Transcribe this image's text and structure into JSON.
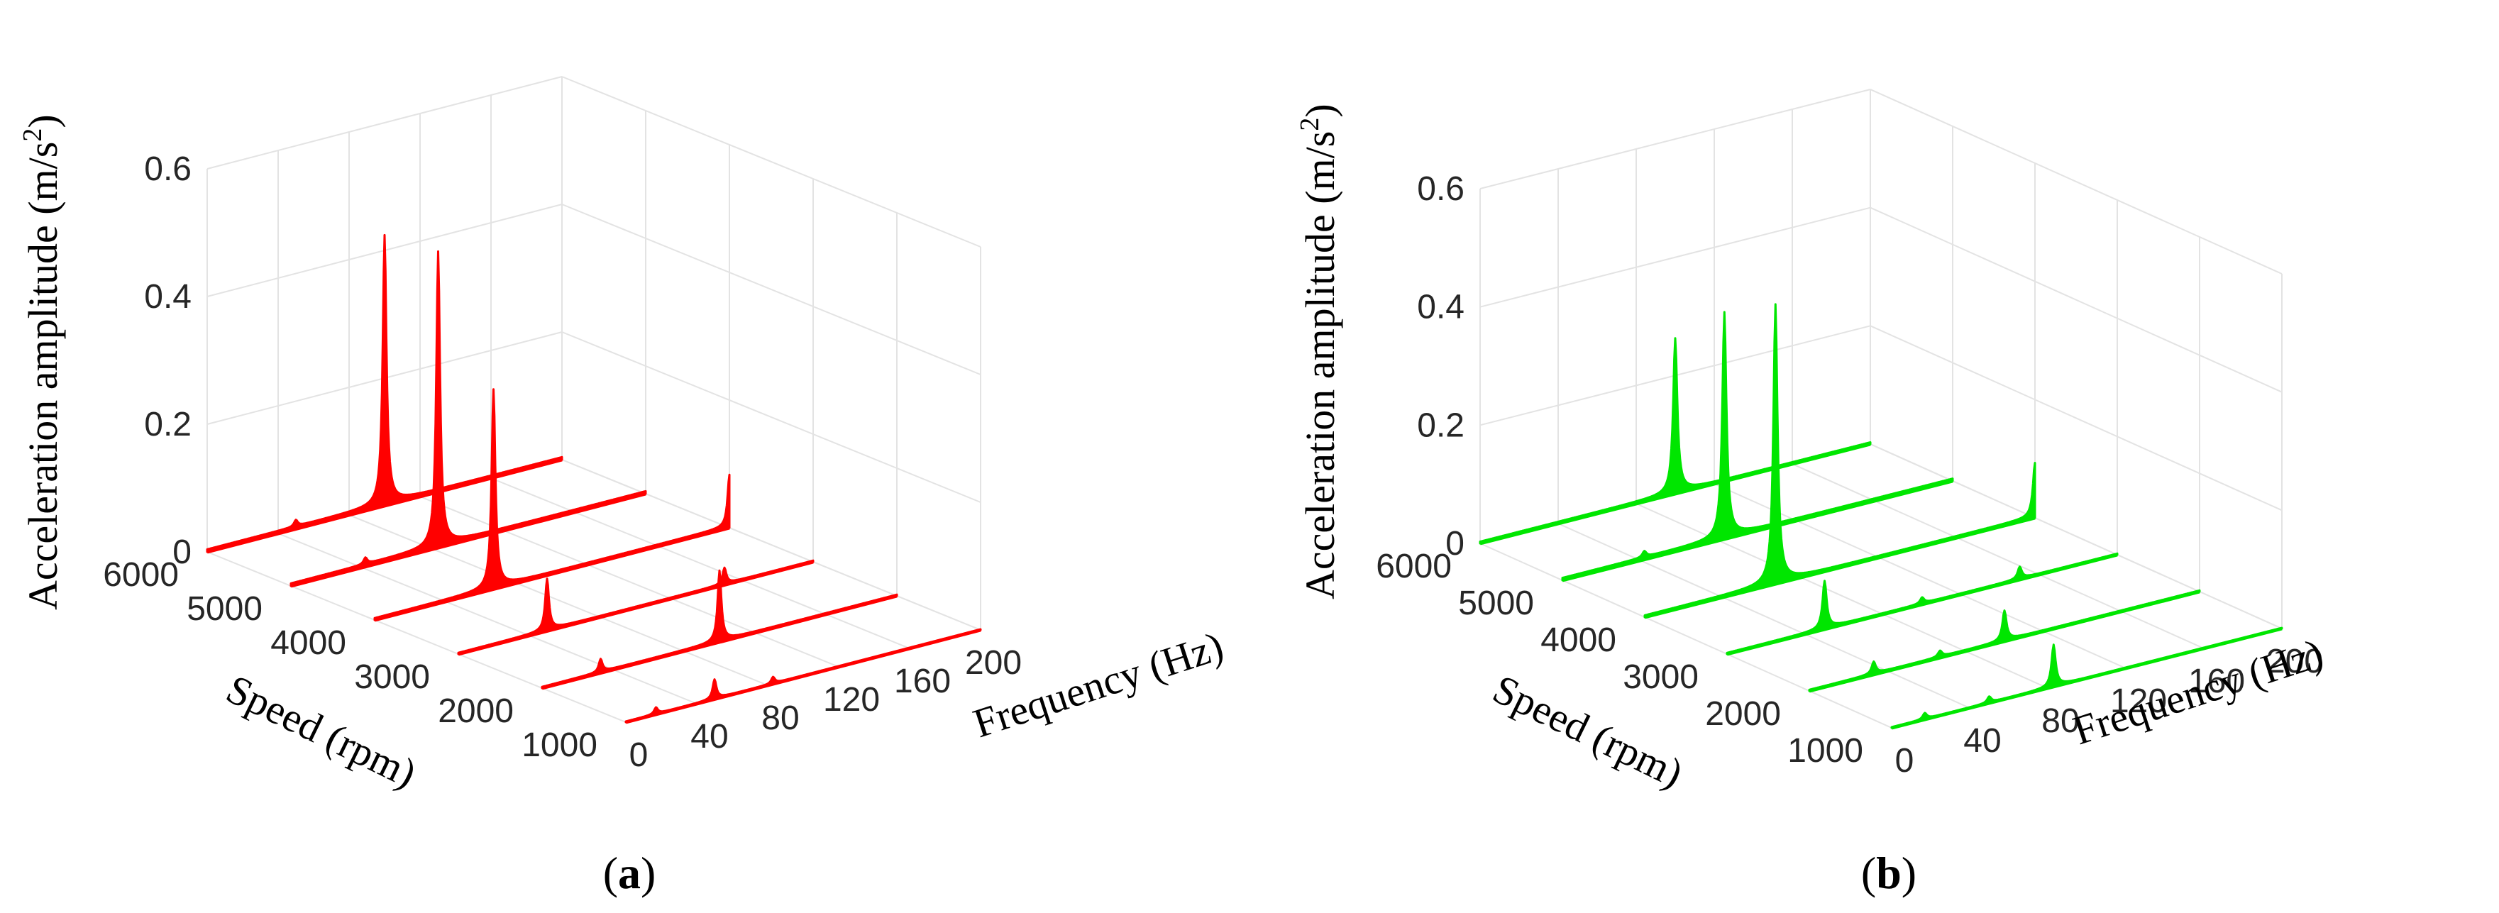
{
  "chart_data": [
    {
      "type": "waterfall-3d",
      "panel": "a",
      "caption": "a",
      "color": "#ff0000",
      "xlabel": "Frequency (Hz)",
      "ylabel": "Speed (rpm)",
      "zlabel": "Acceleration amplitude (m/s²)",
      "zlabel_base": "Acceleration amplitude (m/s",
      "zlabel_sup": "2",
      "zlabel_close": ")",
      "xlim": [
        0,
        200
      ],
      "ylim": [
        1000,
        6000
      ],
      "zlim": [
        0,
        0.6
      ],
      "xticks": [
        "0",
        "40",
        "80",
        "120",
        "160",
        "200"
      ],
      "yticks": [
        "1000",
        "2000",
        "3000",
        "4000",
        "5000",
        "6000"
      ],
      "zticks": [
        "0",
        "0.2",
        "0.4",
        "0.6"
      ],
      "grid": true,
      "series": [
        {
          "name": "6000 rpm",
          "speed": 6000,
          "floor": 0.004,
          "peaks": [
            {
              "f": 100,
              "a": 0.42
            },
            {
              "f": 50,
              "a": 0.01
            }
          ]
        },
        {
          "name": "5000 rpm",
          "speed": 5000,
          "floor": 0.004,
          "peaks": [
            {
              "f": 83,
              "a": 0.46
            },
            {
              "f": 42,
              "a": 0.01
            }
          ]
        },
        {
          "name": "4000 rpm",
          "speed": 4000,
          "floor": 0.003,
          "peaks": [
            {
              "f": 67,
              "a": 0.31
            },
            {
              "f": 200,
              "a": 0.08
            }
          ]
        },
        {
          "name": "3000 rpm",
          "speed": 3000,
          "floor": 0.002,
          "peaks": [
            {
              "f": 50,
              "a": 0.08
            },
            {
              "f": 150,
              "a": 0.025
            }
          ]
        },
        {
          "name": "2000 rpm",
          "speed": 2000,
          "floor": 0.002,
          "peaks": [
            {
              "f": 33,
              "a": 0.02
            },
            {
              "f": 100,
              "a": 0.11
            }
          ]
        },
        {
          "name": "1000 rpm",
          "speed": 1000,
          "floor": 0.001,
          "peaks": [
            {
              "f": 17,
              "a": 0.01
            },
            {
              "f": 50,
              "a": 0.03
            },
            {
              "f": 83,
              "a": 0.01
            }
          ]
        }
      ]
    },
    {
      "type": "waterfall-3d",
      "panel": "b",
      "caption": "b",
      "color": "#00e600",
      "xlabel": "Frequency (Hz)",
      "ylabel": "Speed (rpm)",
      "zlabel": "Acceleration amplitude (m/s²)",
      "zlabel_base": "Acceleration amplitude (m/s",
      "zlabel_sup": "2",
      "zlabel_close": ")",
      "xlim": [
        0,
        200
      ],
      "ylim": [
        1000,
        6000
      ],
      "zlim": [
        0,
        0.6
      ],
      "xticks": [
        "0",
        "40",
        "80",
        "120",
        "160",
        "200"
      ],
      "yticks": [
        "1000",
        "2000",
        "3000",
        "4000",
        "5000",
        "6000"
      ],
      "zticks": [
        "0",
        "0.2",
        "0.4",
        "0.6"
      ],
      "grid": true,
      "series": [
        {
          "name": "6000 rpm",
          "speed": 6000,
          "floor": 0.003,
          "peaks": [
            {
              "f": 100,
              "a": 0.26
            }
          ]
        },
        {
          "name": "5000 rpm",
          "speed": 5000,
          "floor": 0.004,
          "peaks": [
            {
              "f": 83,
              "a": 0.38
            },
            {
              "f": 42,
              "a": 0.01
            }
          ]
        },
        {
          "name": "4000 rpm",
          "speed": 4000,
          "floor": 0.003,
          "peaks": [
            {
              "f": 67,
              "a": 0.47
            },
            {
              "f": 200,
              "a": 0.09
            }
          ]
        },
        {
          "name": "3000 rpm",
          "speed": 3000,
          "floor": 0.002,
          "peaks": [
            {
              "f": 50,
              "a": 0.08
            },
            {
              "f": 100,
              "a": 0.01
            },
            {
              "f": 150,
              "a": 0.02
            }
          ]
        },
        {
          "name": "2000 rpm",
          "speed": 2000,
          "floor": 0.002,
          "peaks": [
            {
              "f": 33,
              "a": 0.02
            },
            {
              "f": 67,
              "a": 0.01
            },
            {
              "f": 100,
              "a": 0.05
            }
          ]
        },
        {
          "name": "1000 rpm",
          "speed": 1000,
          "floor": 0.001,
          "peaks": [
            {
              "f": 17,
              "a": 0.01
            },
            {
              "f": 50,
              "a": 0.01
            },
            {
              "f": 83,
              "a": 0.07
            }
          ]
        }
      ]
    }
  ]
}
